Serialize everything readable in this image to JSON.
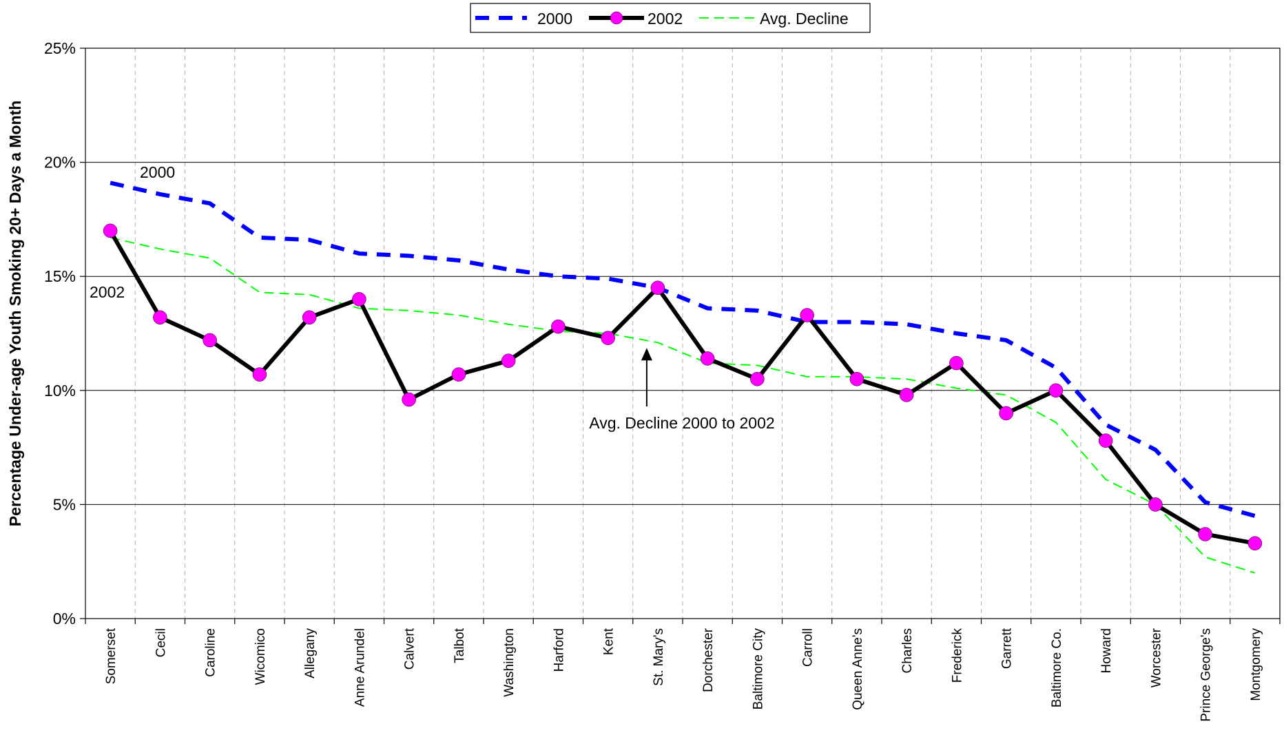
{
  "chart_data": {
    "type": "line",
    "title": "",
    "xlabel": "",
    "ylabel": "Percentage Under-age Youth Smoking 20+ Days a Month",
    "ylim": [
      0,
      25
    ],
    "yticks": [
      "0%",
      "5%",
      "10%",
      "15%",
      "20%",
      "25%"
    ],
    "ytick_values": [
      0,
      5,
      10,
      15,
      20,
      25
    ],
    "grid": "horizontal major + vertical dashed",
    "legend_position": "top-center",
    "categories": [
      "Somerset",
      "Cecil",
      "Caroline",
      "Wicomico",
      "Allegany",
      "Anne Arundel",
      "Calvert",
      "Talbot",
      "Washington",
      "Harford",
      "Kent",
      "St. Mary's",
      "Dorchester",
      "Baltimore City",
      "Carroll",
      "Queen Anne's",
      "Charles",
      "Frederick",
      "Garrett",
      "Baltimore Co.",
      "Howard",
      "Worcester",
      "Prince George's",
      "Montgomery"
    ],
    "series": [
      {
        "name": "2000",
        "color": "#0000ff",
        "style": "dashed",
        "values": [
          19.1,
          18.6,
          18.2,
          16.7,
          16.6,
          16.0,
          15.9,
          15.7,
          15.3,
          15.0,
          14.9,
          14.5,
          13.6,
          13.5,
          13.0,
          13.0,
          12.9,
          12.5,
          12.2,
          11.0,
          8.5,
          7.4,
          5.1,
          4.5
        ]
      },
      {
        "name": "2002",
        "color": "#000000",
        "marker_color": "#ff00ff",
        "style": "solid",
        "values": [
          17.0,
          13.2,
          12.2,
          10.7,
          13.2,
          14.0,
          9.6,
          10.7,
          11.3,
          12.8,
          12.3,
          14.5,
          11.4,
          10.5,
          13.3,
          10.5,
          9.8,
          11.2,
          9.0,
          10.0,
          7.8,
          5.0,
          3.7,
          3.3
        ]
      },
      {
        "name": "Avg. Decline",
        "color": "#00ff00",
        "style": "dashed-thin",
        "values": [
          16.7,
          16.2,
          15.8,
          14.3,
          14.2,
          13.6,
          13.5,
          13.3,
          12.9,
          12.6,
          12.5,
          12.1,
          11.2,
          11.1,
          10.6,
          10.6,
          10.5,
          10.1,
          9.8,
          8.6,
          6.1,
          5.0,
          2.7,
          2.0
        ]
      }
    ],
    "annotations": [
      {
        "text": "2000"
      },
      {
        "text": "2002"
      },
      {
        "text": "Avg. Decline 2000 to 2002",
        "points_to_category": "St. Mary's"
      }
    ]
  }
}
